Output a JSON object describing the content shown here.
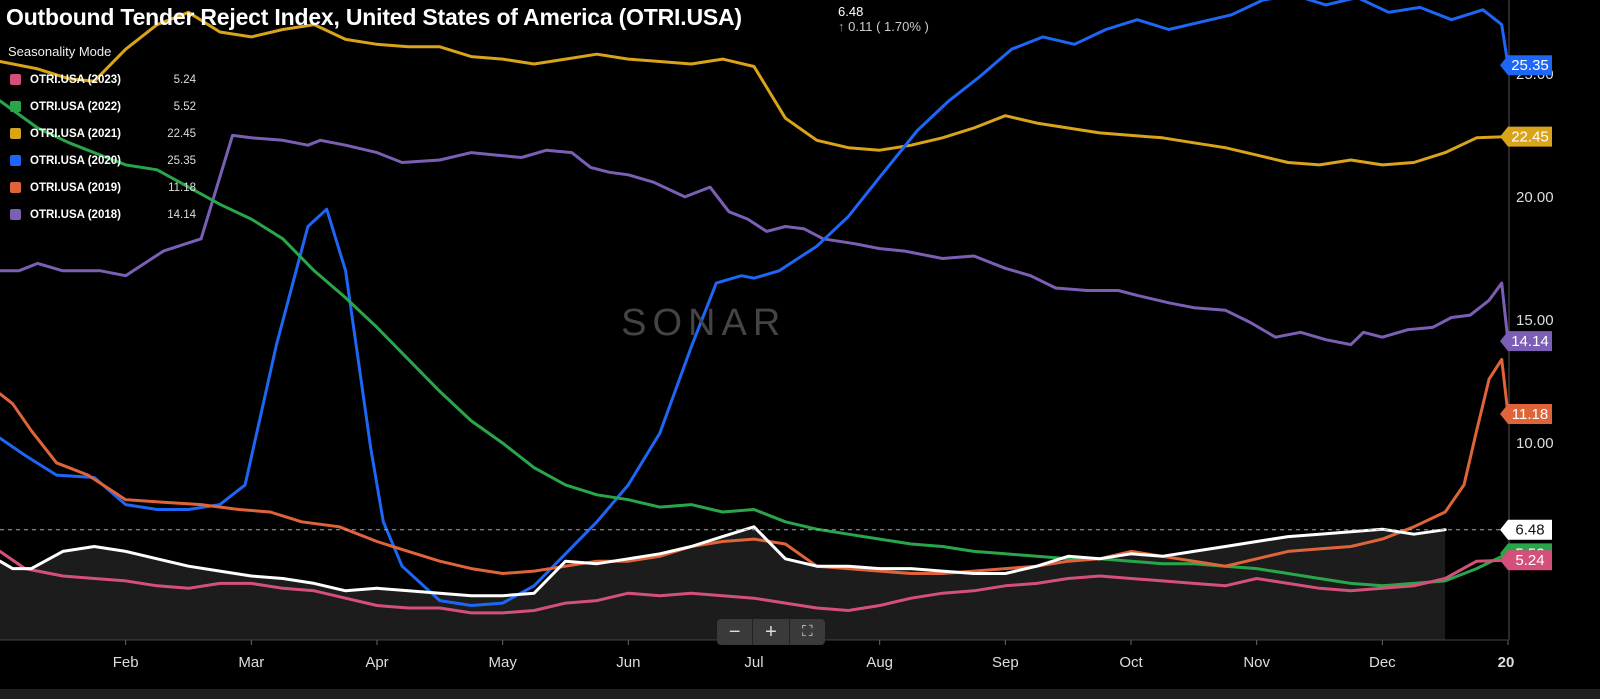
{
  "header": {
    "title": "Outbound Tender Reject Index, United States of America (OTRI.USA)",
    "last_value": "6.48",
    "change": "0.11 ( 1.70% )",
    "change_arrow": "up-arrow-icon",
    "mode_label": "Seasonality Mode"
  },
  "watermark": "SONAR",
  "zoom_controls": {
    "minus": "−",
    "plus": "+",
    "fullscreen": "⛶"
  },
  "legend": [
    {
      "name": "OTRI.USA (2023)",
      "value": "5.24",
      "color": "#d4507a"
    },
    {
      "name": "OTRI.USA (2022)",
      "value": "5.52",
      "color": "#2aa64a"
    },
    {
      "name": "OTRI.USA (2021)",
      "value": "22.45",
      "color": "#d9a31a"
    },
    {
      "name": "OTRI.USA (2020)",
      "value": "25.35",
      "color": "#1e66f5"
    },
    {
      "name": "OTRI.USA (2019)",
      "value": "11.18",
      "color": "#e0643a"
    },
    {
      "name": "OTRI.USA (2018)",
      "value": "14.14",
      "color": "#7b5fb5"
    }
  ],
  "chart_data": {
    "type": "line",
    "title": "Outbound Tender Reject Index, United States of America (OTRI.USA)",
    "x_ticks": [
      "Feb",
      "Mar",
      "Apr",
      "May",
      "Jun",
      "Jul",
      "Aug",
      "Sep",
      "Oct",
      "Nov",
      "Dec",
      "20"
    ],
    "y_ticks": [
      "10.00",
      "15.00",
      "20.00",
      "25.00"
    ],
    "ylim": [
      2.0,
      28.0
    ],
    "x_unit": "month (1 = Jan 1, 13 = Jan 1 next year)",
    "reference_line": {
      "value": 6.48,
      "label": "6.48",
      "style": "dashed"
    },
    "series": [
      {
        "name": "OTRI.USA (2018)",
        "color": "#7b5fb5",
        "last_label": "14.14",
        "x": [
          1.0,
          1.15,
          1.3,
          1.5,
          1.8,
          2.0,
          2.3,
          2.6,
          2.85,
          3.0,
          3.25,
          3.45,
          3.55,
          3.75,
          4.0,
          4.2,
          4.5,
          4.75,
          4.95,
          5.15,
          5.35,
          5.55,
          5.7,
          5.85,
          6.0,
          6.2,
          6.45,
          6.65,
          6.8,
          6.95,
          7.1,
          7.25,
          7.4,
          7.55,
          7.8,
          8.0,
          8.2,
          8.5,
          8.75,
          9.0,
          9.2,
          9.4,
          9.65,
          9.9,
          10.05,
          10.3,
          10.5,
          10.75,
          10.95,
          11.15,
          11.35,
          11.55,
          11.75,
          11.85,
          12.0,
          12.2,
          12.4,
          12.55,
          12.7,
          12.85,
          12.95,
          13.0
        ],
        "y": [
          17.0,
          17.0,
          17.3,
          17.0,
          17.0,
          16.8,
          17.8,
          18.3,
          22.5,
          22.4,
          22.3,
          22.1,
          22.3,
          22.1,
          21.8,
          21.4,
          21.5,
          21.8,
          21.7,
          21.6,
          21.9,
          21.8,
          21.2,
          21.0,
          20.9,
          20.6,
          20.0,
          20.4,
          19.4,
          19.1,
          18.6,
          18.8,
          18.7,
          18.3,
          18.1,
          17.9,
          17.8,
          17.5,
          17.6,
          17.1,
          16.8,
          16.3,
          16.2,
          16.2,
          16.0,
          15.7,
          15.5,
          15.4,
          14.9,
          14.3,
          14.5,
          14.2,
          14.0,
          14.5,
          14.3,
          14.6,
          14.7,
          15.1,
          15.2,
          15.8,
          16.5,
          14.14
        ]
      },
      {
        "name": "OTRI.USA (2021)",
        "color": "#d9a31a",
        "last_label": "22.45",
        "x": [
          1.0,
          1.3,
          1.55,
          1.75,
          2.0,
          2.25,
          2.5,
          2.75,
          3.0,
          3.25,
          3.5,
          3.75,
          4.0,
          4.25,
          4.5,
          4.75,
          5.0,
          5.25,
          5.5,
          5.75,
          6.0,
          6.25,
          6.5,
          6.75,
          7.0,
          7.25,
          7.5,
          7.75,
          8.0,
          8.25,
          8.5,
          8.75,
          9.0,
          9.25,
          9.5,
          9.75,
          10.0,
          10.25,
          10.5,
          10.75,
          11.0,
          11.25,
          11.5,
          11.75,
          12.0,
          12.25,
          12.5,
          12.75,
          13.0
        ],
        "y": [
          25.5,
          25.2,
          24.8,
          24.7,
          26.0,
          27.0,
          27.5,
          26.7,
          26.5,
          26.8,
          27.0,
          26.4,
          26.2,
          26.1,
          26.1,
          25.7,
          25.6,
          25.4,
          25.6,
          25.8,
          25.6,
          25.5,
          25.4,
          25.6,
          25.3,
          23.2,
          22.3,
          22.0,
          21.9,
          22.1,
          22.4,
          22.8,
          23.3,
          23.0,
          22.8,
          22.6,
          22.5,
          22.4,
          22.2,
          22.0,
          21.7,
          21.4,
          21.3,
          21.5,
          21.3,
          21.4,
          21.8,
          22.4,
          22.45
        ]
      },
      {
        "name": "OTRI.USA (2020)",
        "color": "#1e66f5",
        "last_label": "25.35",
        "x": [
          1.0,
          1.2,
          1.45,
          1.75,
          2.0,
          2.25,
          2.5,
          2.75,
          2.95,
          3.2,
          3.45,
          3.6,
          3.75,
          3.95,
          4.05,
          4.2,
          4.5,
          4.75,
          5.0,
          5.25,
          5.5,
          5.75,
          6.0,
          6.25,
          6.5,
          6.7,
          6.9,
          7.0,
          7.2,
          7.5,
          7.75,
          8.0,
          8.3,
          8.55,
          8.8,
          9.05,
          9.3,
          9.55,
          9.8,
          10.05,
          10.3,
          10.55,
          10.8,
          11.05,
          11.3,
          11.55,
          11.8,
          12.05,
          12.3,
          12.55,
          12.8,
          12.95,
          13.0
        ],
        "y": [
          10.2,
          9.5,
          8.7,
          8.6,
          7.5,
          7.3,
          7.3,
          7.5,
          8.3,
          14.0,
          18.8,
          19.5,
          17.0,
          9.8,
          6.8,
          5.0,
          3.6,
          3.4,
          3.5,
          4.2,
          5.5,
          6.8,
          8.3,
          10.4,
          13.9,
          16.5,
          16.8,
          16.7,
          17.0,
          18.0,
          19.2,
          20.8,
          22.7,
          23.9,
          24.9,
          26.0,
          26.5,
          26.2,
          26.8,
          27.2,
          26.8,
          27.1,
          27.4,
          28.0,
          28.2,
          27.8,
          28.1,
          27.5,
          27.7,
          27.2,
          27.6,
          27.0,
          25.35
        ]
      },
      {
        "name": "OTRI.USA (2022)",
        "color": "#2aa64a",
        "last_label": "5.52",
        "x": [
          1.0,
          1.3,
          1.55,
          1.8,
          2.0,
          2.25,
          2.5,
          2.75,
          3.0,
          3.25,
          3.5,
          3.75,
          4.0,
          4.25,
          4.5,
          4.75,
          5.0,
          5.25,
          5.5,
          5.75,
          6.0,
          6.25,
          6.5,
          6.75,
          7.0,
          7.25,
          7.5,
          7.75,
          8.0,
          8.25,
          8.5,
          8.75,
          9.0,
          9.25,
          9.5,
          9.75,
          10.0,
          10.25,
          10.5,
          10.75,
          11.0,
          11.25,
          11.5,
          11.75,
          12.0,
          12.25,
          12.5,
          12.75,
          13.0
        ],
        "y": [
          23.9,
          22.8,
          22.2,
          21.7,
          21.3,
          21.1,
          20.4,
          19.7,
          19.1,
          18.3,
          17.0,
          15.9,
          14.7,
          13.4,
          12.1,
          10.9,
          10.0,
          9.0,
          8.3,
          7.9,
          7.7,
          7.4,
          7.5,
          7.2,
          7.3,
          6.8,
          6.5,
          6.3,
          6.1,
          5.9,
          5.8,
          5.6,
          5.5,
          5.4,
          5.3,
          5.3,
          5.2,
          5.1,
          5.1,
          5.0,
          4.9,
          4.7,
          4.5,
          4.3,
          4.2,
          4.3,
          4.4,
          4.9,
          5.52
        ]
      },
      {
        "name": "OTRI.USA (2019)",
        "color": "#e0643a",
        "last_label": "11.18",
        "x": [
          1.0,
          1.1,
          1.25,
          1.45,
          1.7,
          2.0,
          2.3,
          2.6,
          2.9,
          3.15,
          3.4,
          3.7,
          4.0,
          4.25,
          4.5,
          4.75,
          5.0,
          5.25,
          5.5,
          5.75,
          6.0,
          6.25,
          6.5,
          6.75,
          7.0,
          7.25,
          7.5,
          7.75,
          8.0,
          8.25,
          8.5,
          8.75,
          9.0,
          9.25,
          9.5,
          9.75,
          10.0,
          10.25,
          10.5,
          10.75,
          11.0,
          11.25,
          11.5,
          11.75,
          12.0,
          12.25,
          12.5,
          12.65,
          12.75,
          12.85,
          12.95,
          13.0
        ],
        "y": [
          12.0,
          11.6,
          10.5,
          9.2,
          8.7,
          7.7,
          7.6,
          7.5,
          7.3,
          7.2,
          6.8,
          6.6,
          6.0,
          5.6,
          5.2,
          4.9,
          4.7,
          4.8,
          5.0,
          5.2,
          5.2,
          5.4,
          5.8,
          6.0,
          6.1,
          5.9,
          5.0,
          4.9,
          4.8,
          4.7,
          4.7,
          4.8,
          4.9,
          5.0,
          5.2,
          5.3,
          5.6,
          5.4,
          5.2,
          5.0,
          5.3,
          5.6,
          5.7,
          5.8,
          6.1,
          6.6,
          7.2,
          8.3,
          10.5,
          12.6,
          13.4,
          11.18
        ]
      },
      {
        "name": "OTRI.USA (2023)",
        "color": "#d4507a",
        "last_label": "5.24",
        "x": [
          1.0,
          1.2,
          1.5,
          1.75,
          2.0,
          2.25,
          2.5,
          2.75,
          3.0,
          3.25,
          3.5,
          3.75,
          4.0,
          4.25,
          4.5,
          4.75,
          5.0,
          5.25,
          5.5,
          5.75,
          6.0,
          6.25,
          6.5,
          6.75,
          7.0,
          7.25,
          7.5,
          7.75,
          8.0,
          8.25,
          8.5,
          8.75,
          9.0,
          9.25,
          9.5,
          9.75,
          10.0,
          10.25,
          10.5,
          10.75,
          11.0,
          11.25,
          11.5,
          11.75,
          12.0,
          12.25,
          12.5,
          12.75,
          13.0
        ],
        "y": [
          5.6,
          4.9,
          4.6,
          4.5,
          4.4,
          4.2,
          4.1,
          4.3,
          4.3,
          4.1,
          4.0,
          3.7,
          3.4,
          3.3,
          3.3,
          3.1,
          3.1,
          3.2,
          3.5,
          3.6,
          3.9,
          3.8,
          3.9,
          3.8,
          3.7,
          3.5,
          3.3,
          3.2,
          3.4,
          3.7,
          3.9,
          4.0,
          4.2,
          4.3,
          4.5,
          4.6,
          4.5,
          4.4,
          4.3,
          4.2,
          4.5,
          4.3,
          4.1,
          4.0,
          4.1,
          4.2,
          4.5,
          5.2,
          5.24
        ]
      },
      {
        "name": "OTRI.USA",
        "color": "#ffffff",
        "last_label": "6.48",
        "x": [
          1.0,
          1.1,
          1.25,
          1.5,
          1.75,
          2.0,
          2.25,
          2.5,
          2.75,
          3.0,
          3.25,
          3.5,
          3.75,
          4.0,
          4.25,
          4.5,
          4.75,
          5.0,
          5.25,
          5.5,
          5.75,
          6.0,
          6.25,
          6.5,
          6.75,
          7.0,
          7.25,
          7.5,
          7.75,
          8.0,
          8.25,
          8.5,
          8.75,
          9.0,
          9.25,
          9.5,
          9.75,
          10.0,
          10.25,
          10.5,
          10.75,
          11.0,
          11.25,
          11.5,
          11.75,
          12.0,
          12.25,
          12.5
        ],
        "y": [
          5.2,
          4.9,
          4.9,
          5.6,
          5.8,
          5.6,
          5.3,
          5.0,
          4.8,
          4.6,
          4.5,
          4.3,
          4.0,
          4.1,
          4.0,
          3.9,
          3.8,
          3.8,
          3.9,
          5.2,
          5.1,
          5.3,
          5.5,
          5.8,
          6.2,
          6.6,
          5.3,
          5.0,
          5.0,
          4.9,
          4.9,
          4.8,
          4.7,
          4.7,
          5.0,
          5.4,
          5.3,
          5.5,
          5.4,
          5.6,
          5.8,
          6.0,
          6.2,
          6.3,
          6.4,
          6.5,
          6.3,
          6.48
        ]
      }
    ]
  }
}
